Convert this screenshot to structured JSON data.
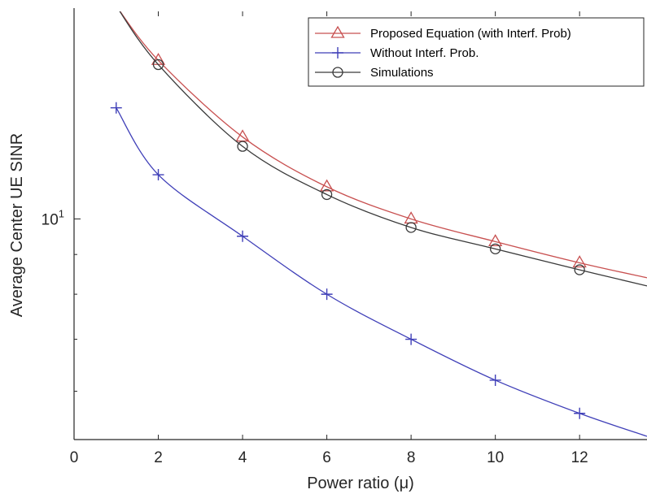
{
  "chart_data": {
    "type": "line",
    "xlabel": "Power ratio (μ)",
    "ylabel": "Average Center UE SINR",
    "xlim": [
      0,
      13.6
    ],
    "ylim": [
      5.2,
      18.5
    ],
    "yscale": "log",
    "x_ticks": [
      0,
      2,
      4,
      6,
      8,
      10,
      12
    ],
    "x_tick_labels": [
      "0",
      "2",
      "4",
      "6",
      "8",
      "10",
      "12"
    ],
    "y_ticks": [
      10
    ],
    "y_tick_labels": [
      {
        "base": "10",
        "exp": "1"
      }
    ],
    "grid": false,
    "legend_position": "top-right",
    "series": [
      {
        "name": "Proposed Equation (with Interf. Prob)",
        "color": "#c85050",
        "marker": "triangle",
        "x": [
          1,
          2,
          4,
          6,
          8,
          10,
          12,
          13.6
        ],
        "y": [
          18.8,
          16.0,
          12.75,
          11.0,
          10.0,
          9.35,
          8.78,
          8.4
        ],
        "marker_x": [
          2,
          4,
          6,
          8,
          10,
          12
        ]
      },
      {
        "name": "Without Interf. Prob.",
        "color": "#3f3fb8",
        "marker": "plus",
        "x": [
          1,
          2,
          4,
          6,
          8,
          10,
          12,
          13.6
        ],
        "y": [
          13.9,
          11.4,
          9.5,
          8.0,
          7.0,
          6.2,
          5.62,
          5.25
        ],
        "marker_x": [
          1,
          2,
          4,
          6,
          8,
          10,
          12
        ]
      },
      {
        "name": "Simulations",
        "color": "#3a3a3a",
        "marker": "circle",
        "x": [
          1,
          2,
          4,
          6,
          8,
          10,
          12,
          13.6
        ],
        "y": [
          18.8,
          15.8,
          12.4,
          10.75,
          9.75,
          9.15,
          8.6,
          8.2
        ],
        "marker_x": [
          2,
          4,
          6,
          8,
          10,
          12
        ]
      }
    ]
  }
}
